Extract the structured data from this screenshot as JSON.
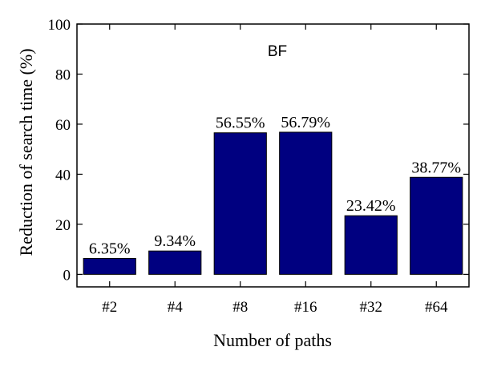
{
  "chart_data": {
    "type": "bar",
    "title": "BF",
    "xlabel": "Number of paths",
    "ylabel": "Reduction of search time (%)",
    "categories": [
      "#2",
      "#4",
      "#8",
      "#16",
      "#32",
      "#64"
    ],
    "values": [
      6.35,
      9.34,
      56.55,
      56.79,
      23.42,
      38.77
    ],
    "data_labels": [
      "6.35%",
      "9.34%",
      "56.55%",
      "56.79%",
      "23.42%",
      "38.77%"
    ],
    "ylim": [
      -5,
      100
    ],
    "yticks": [
      0,
      20,
      40,
      60,
      80,
      100
    ],
    "grid": false,
    "legend": "none",
    "bar_color": "#000080"
  }
}
